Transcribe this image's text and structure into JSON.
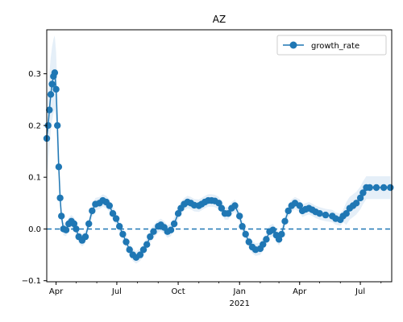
{
  "chart_data": {
    "type": "line",
    "title": "AZ",
    "xlabel": "",
    "ylabel": "",
    "ylim": [
      -0.102,
      0.385
    ],
    "xlim": [
      "2020-03-18",
      "2021-08-17"
    ],
    "x_ticks": [
      {
        "date": "2020-04-01",
        "label": "Apr",
        "sub": ""
      },
      {
        "date": "2020-07-01",
        "label": "Jul",
        "sub": ""
      },
      {
        "date": "2020-10-01",
        "label": "Oct",
        "sub": ""
      },
      {
        "date": "2021-01-01",
        "label": "Jan",
        "sub": "2021"
      },
      {
        "date": "2021-04-01",
        "label": "Apr",
        "sub": ""
      },
      {
        "date": "2021-07-01",
        "label": "Jul",
        "sub": ""
      }
    ],
    "y_ticks": [
      {
        "value": 0.3,
        "label": "0.3"
      },
      {
        "value": 0.2,
        "label": "0.2"
      },
      {
        "value": 0.1,
        "label": "0.1"
      },
      {
        "value": 0.0,
        "label": "0.0"
      },
      {
        "value": -0.1,
        "label": "−0.1"
      }
    ],
    "reference_line": {
      "value": 0.0,
      "style": "dashed",
      "color": "#1f77b4"
    },
    "legend": {
      "location": "top-right",
      "entries": [
        "growth_rate"
      ]
    },
    "grid": false,
    "colors": {
      "series": "#1f77b4",
      "band": "#dce9f5"
    },
    "series": [
      {
        "name": "growth_rate",
        "marker": "circle",
        "points": [
          [
            "2020-03-18",
            0.175
          ],
          [
            "2020-03-20",
            0.2
          ],
          [
            "2020-03-22",
            0.23
          ],
          [
            "2020-03-24",
            0.26
          ],
          [
            "2020-03-26",
            0.28
          ],
          [
            "2020-03-28",
            0.295
          ],
          [
            "2020-03-30",
            0.302
          ],
          [
            "2020-04-01",
            0.27
          ],
          [
            "2020-04-03",
            0.2
          ],
          [
            "2020-04-05",
            0.12
          ],
          [
            "2020-04-07",
            0.06
          ],
          [
            "2020-04-09",
            0.025
          ],
          [
            "2020-04-12",
            0.0
          ],
          [
            "2020-04-16",
            -0.002
          ],
          [
            "2020-04-20",
            0.01
          ],
          [
            "2020-04-24",
            0.015
          ],
          [
            "2020-04-28",
            0.01
          ],
          [
            "2020-05-01",
            0.0
          ],
          [
            "2020-05-05",
            -0.015
          ],
          [
            "2020-05-10",
            -0.022
          ],
          [
            "2020-05-15",
            -0.015
          ],
          [
            "2020-05-20",
            0.01
          ],
          [
            "2020-05-25",
            0.035
          ],
          [
            "2020-05-30",
            0.048
          ],
          [
            "2020-06-05",
            0.05
          ],
          [
            "2020-06-10",
            0.055
          ],
          [
            "2020-06-15",
            0.052
          ],
          [
            "2020-06-20",
            0.045
          ],
          [
            "2020-06-25",
            0.03
          ],
          [
            "2020-06-30",
            0.02
          ],
          [
            "2020-07-05",
            0.005
          ],
          [
            "2020-07-10",
            -0.01
          ],
          [
            "2020-07-15",
            -0.025
          ],
          [
            "2020-07-20",
            -0.04
          ],
          [
            "2020-07-25",
            -0.05
          ],
          [
            "2020-07-30",
            -0.055
          ],
          [
            "2020-08-05",
            -0.05
          ],
          [
            "2020-08-10",
            -0.04
          ],
          [
            "2020-08-15",
            -0.03
          ],
          [
            "2020-08-20",
            -0.015
          ],
          [
            "2020-08-25",
            -0.005
          ],
          [
            "2020-09-01",
            0.005
          ],
          [
            "2020-09-05",
            0.008
          ],
          [
            "2020-09-10",
            0.003
          ],
          [
            "2020-09-15",
            -0.005
          ],
          [
            "2020-09-20",
            -0.002
          ],
          [
            "2020-09-25",
            0.01
          ],
          [
            "2020-10-01",
            0.03
          ],
          [
            "2020-10-05",
            0.04
          ],
          [
            "2020-10-10",
            0.048
          ],
          [
            "2020-10-15",
            0.052
          ],
          [
            "2020-10-20",
            0.05
          ],
          [
            "2020-10-25",
            0.046
          ],
          [
            "2020-11-01",
            0.045
          ],
          [
            "2020-11-05",
            0.048
          ],
          [
            "2020-11-10",
            0.052
          ],
          [
            "2020-11-15",
            0.055
          ],
          [
            "2020-11-20",
            0.055
          ],
          [
            "2020-11-25",
            0.054
          ],
          [
            "2020-12-01",
            0.05
          ],
          [
            "2020-12-05",
            0.04
          ],
          [
            "2020-12-10",
            0.03
          ],
          [
            "2020-12-15",
            0.03
          ],
          [
            "2020-12-20",
            0.04
          ],
          [
            "2020-12-25",
            0.045
          ],
          [
            "2021-01-01",
            0.025
          ],
          [
            "2021-01-05",
            0.005
          ],
          [
            "2021-01-10",
            -0.01
          ],
          [
            "2021-01-15",
            -0.025
          ],
          [
            "2021-01-20",
            -0.035
          ],
          [
            "2021-01-25",
            -0.04
          ],
          [
            "2021-02-01",
            -0.038
          ],
          [
            "2021-02-05",
            -0.03
          ],
          [
            "2021-02-10",
            -0.02
          ],
          [
            "2021-02-15",
            -0.005
          ],
          [
            "2021-02-20",
            -0.002
          ],
          [
            "2021-02-25",
            -0.012
          ],
          [
            "2021-03-01",
            -0.02
          ],
          [
            "2021-03-05",
            -0.01
          ],
          [
            "2021-03-10",
            0.015
          ],
          [
            "2021-03-15",
            0.035
          ],
          [
            "2021-03-20",
            0.045
          ],
          [
            "2021-03-25",
            0.05
          ],
          [
            "2021-04-01",
            0.045
          ],
          [
            "2021-04-05",
            0.035
          ],
          [
            "2021-04-10",
            0.038
          ],
          [
            "2021-04-15",
            0.04
          ],
          [
            "2021-04-20",
            0.037
          ],
          [
            "2021-04-25",
            0.033
          ],
          [
            "2021-05-01",
            0.03
          ],
          [
            "2021-05-10",
            0.027
          ],
          [
            "2021-05-20",
            0.025
          ],
          [
            "2021-05-25",
            0.02
          ],
          [
            "2021-06-01",
            0.018
          ],
          [
            "2021-06-05",
            0.025
          ],
          [
            "2021-06-10",
            0.03
          ],
          [
            "2021-06-15",
            0.04
          ],
          [
            "2021-06-20",
            0.045
          ],
          [
            "2021-06-25",
            0.05
          ],
          [
            "2021-07-01",
            0.06
          ],
          [
            "2021-07-05",
            0.07
          ],
          [
            "2021-07-10",
            0.08
          ],
          [
            "2021-07-15",
            0.08
          ],
          [
            "2021-07-25",
            0.08
          ],
          [
            "2021-08-05",
            0.08
          ],
          [
            "2021-08-15",
            0.08
          ]
        ]
      }
    ]
  }
}
